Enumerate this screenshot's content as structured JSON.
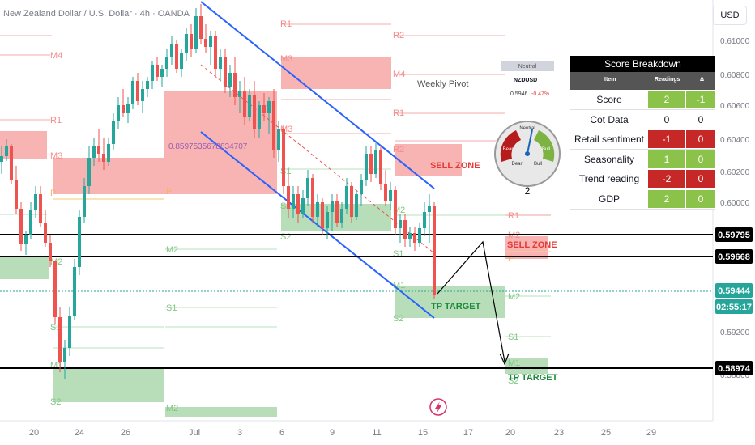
{
  "header": {
    "title": "New Zealand Dollar / U.S. Dollar · 4h · OANDA",
    "currency": "USD"
  },
  "chart_data": {
    "type": "candlestick",
    "price_ticks": [
      "0.61000",
      "0.60800",
      "0.60600",
      "0.60400",
      "0.60200",
      "0.60000",
      "0.59200",
      "0.58800"
    ],
    "x_ticks": [
      "20",
      "24",
      "26",
      "Jul",
      "3",
      "6",
      "9",
      "11",
      "15",
      "17",
      "20",
      "23",
      "25",
      "29"
    ],
    "price_labels": [
      {
        "value": "0.59795",
        "style": "black"
      },
      {
        "value": "0.59668",
        "style": "black"
      },
      {
        "value": "0.59444",
        "style": "green"
      },
      {
        "value": "02:55:17",
        "style": "green"
      },
      {
        "value": "0.58974",
        "style": "black"
      }
    ],
    "annotations": {
      "weekly_pivot": "Weekly Pivot",
      "sell_zone_1": "SELL ZONE",
      "sell_zone_2": "SELL ZONE",
      "tp_target_1": "TP TARGET",
      "tp_target_2": "TP TARGET",
      "fib_value": "0.8597535678834707"
    },
    "pivot_labels": [
      "R1",
      "R2",
      "M4",
      "R1",
      "M3",
      "M4",
      "R1",
      "M3",
      "R2",
      "P",
      "P",
      "M2",
      "M3",
      "S1",
      "S1",
      "M2",
      "S1",
      "M2",
      "S1",
      "M2",
      "S1",
      "S2",
      "S2",
      "M1",
      "M1",
      "S2",
      "M1",
      "R1",
      "M2",
      "S1",
      "P",
      "M3",
      "M2",
      "S2"
    ],
    "colors": {
      "up": "#26a69a",
      "down": "#ef5350",
      "channel": "#2962ff",
      "resistance": "#f48c8c",
      "support": "#8ccf8c",
      "level": "#000000"
    }
  },
  "gauge": {
    "title": "Neutral",
    "symbol": "NZDUSD",
    "price": "0.5946",
    "change": "-0.47%",
    "label_top": "Neutral",
    "label_left": "Bear",
    "label_right": "Bull",
    "label_dear": "Dear",
    "label_dbull": "Bull",
    "reading": "2"
  },
  "score": {
    "title": "Score Breakdown",
    "col_item": "Item",
    "col_readings": "Readings",
    "col_delta": "Δ",
    "rows": [
      {
        "item": "Score",
        "reading": "2",
        "delta": "-1",
        "rc": "#8bc34a",
        "dc": "#8bc34a"
      },
      {
        "item": "Cot Data",
        "reading": "0",
        "delta": "0",
        "rc": "#ffffff",
        "dc": "#ffffff"
      },
      {
        "item": "Retail sentiment",
        "reading": "-1",
        "delta": "0",
        "rc": "#c62828",
        "dc": "#c62828"
      },
      {
        "item": "Seasonality",
        "reading": "1",
        "delta": "0",
        "rc": "#8bc34a",
        "dc": "#8bc34a"
      },
      {
        "item": "Trend reading",
        "reading": "-2",
        "delta": "0",
        "rc": "#c62828",
        "dc": "#c62828"
      },
      {
        "item": "GDP",
        "reading": "2",
        "delta": "0",
        "rc": "#8bc34a",
        "dc": "#8bc34a"
      }
    ]
  }
}
